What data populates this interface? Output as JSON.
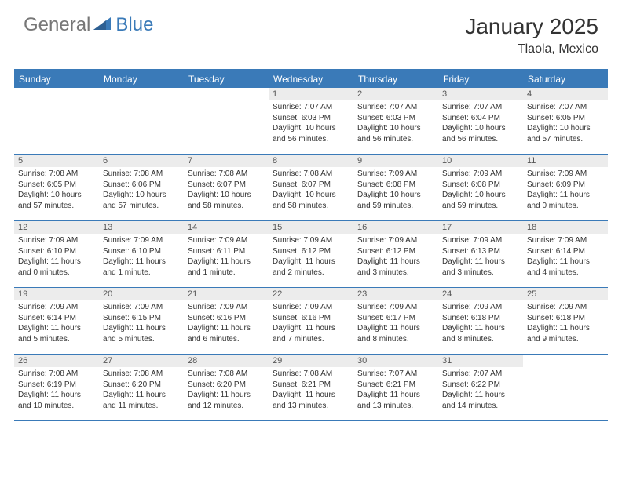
{
  "logo": {
    "text1": "General",
    "text2": "Blue"
  },
  "title": "January 2025",
  "location": "Tlaola, Mexico",
  "colors": {
    "header_bg": "#3a7ab8",
    "daynum_bg": "#ececec",
    "border": "#3a7ab8",
    "logo_gray": "#777777",
    "logo_blue": "#3a7ab8"
  },
  "day_names": [
    "Sunday",
    "Monday",
    "Tuesday",
    "Wednesday",
    "Thursday",
    "Friday",
    "Saturday"
  ],
  "weeks": [
    [
      {
        "empty": true
      },
      {
        "empty": true
      },
      {
        "empty": true
      },
      {
        "day": "1",
        "sunrise": "7:07 AM",
        "sunset": "6:03 PM",
        "daylight": "10 hours and 56 minutes."
      },
      {
        "day": "2",
        "sunrise": "7:07 AM",
        "sunset": "6:03 PM",
        "daylight": "10 hours and 56 minutes."
      },
      {
        "day": "3",
        "sunrise": "7:07 AM",
        "sunset": "6:04 PM",
        "daylight": "10 hours and 56 minutes."
      },
      {
        "day": "4",
        "sunrise": "7:07 AM",
        "sunset": "6:05 PM",
        "daylight": "10 hours and 57 minutes."
      }
    ],
    [
      {
        "day": "5",
        "sunrise": "7:08 AM",
        "sunset": "6:05 PM",
        "daylight": "10 hours and 57 minutes."
      },
      {
        "day": "6",
        "sunrise": "7:08 AM",
        "sunset": "6:06 PM",
        "daylight": "10 hours and 57 minutes."
      },
      {
        "day": "7",
        "sunrise": "7:08 AM",
        "sunset": "6:07 PM",
        "daylight": "10 hours and 58 minutes."
      },
      {
        "day": "8",
        "sunrise": "7:08 AM",
        "sunset": "6:07 PM",
        "daylight": "10 hours and 58 minutes."
      },
      {
        "day": "9",
        "sunrise": "7:09 AM",
        "sunset": "6:08 PM",
        "daylight": "10 hours and 59 minutes."
      },
      {
        "day": "10",
        "sunrise": "7:09 AM",
        "sunset": "6:08 PM",
        "daylight": "10 hours and 59 minutes."
      },
      {
        "day": "11",
        "sunrise": "7:09 AM",
        "sunset": "6:09 PM",
        "daylight": "11 hours and 0 minutes."
      }
    ],
    [
      {
        "day": "12",
        "sunrise": "7:09 AM",
        "sunset": "6:10 PM",
        "daylight": "11 hours and 0 minutes."
      },
      {
        "day": "13",
        "sunrise": "7:09 AM",
        "sunset": "6:10 PM",
        "daylight": "11 hours and 1 minute."
      },
      {
        "day": "14",
        "sunrise": "7:09 AM",
        "sunset": "6:11 PM",
        "daylight": "11 hours and 1 minute."
      },
      {
        "day": "15",
        "sunrise": "7:09 AM",
        "sunset": "6:12 PM",
        "daylight": "11 hours and 2 minutes."
      },
      {
        "day": "16",
        "sunrise": "7:09 AM",
        "sunset": "6:12 PM",
        "daylight": "11 hours and 3 minutes."
      },
      {
        "day": "17",
        "sunrise": "7:09 AM",
        "sunset": "6:13 PM",
        "daylight": "11 hours and 3 minutes."
      },
      {
        "day": "18",
        "sunrise": "7:09 AM",
        "sunset": "6:14 PM",
        "daylight": "11 hours and 4 minutes."
      }
    ],
    [
      {
        "day": "19",
        "sunrise": "7:09 AM",
        "sunset": "6:14 PM",
        "daylight": "11 hours and 5 minutes."
      },
      {
        "day": "20",
        "sunrise": "7:09 AM",
        "sunset": "6:15 PM",
        "daylight": "11 hours and 5 minutes."
      },
      {
        "day": "21",
        "sunrise": "7:09 AM",
        "sunset": "6:16 PM",
        "daylight": "11 hours and 6 minutes."
      },
      {
        "day": "22",
        "sunrise": "7:09 AM",
        "sunset": "6:16 PM",
        "daylight": "11 hours and 7 minutes."
      },
      {
        "day": "23",
        "sunrise": "7:09 AM",
        "sunset": "6:17 PM",
        "daylight": "11 hours and 8 minutes."
      },
      {
        "day": "24",
        "sunrise": "7:09 AM",
        "sunset": "6:18 PM",
        "daylight": "11 hours and 8 minutes."
      },
      {
        "day": "25",
        "sunrise": "7:09 AM",
        "sunset": "6:18 PM",
        "daylight": "11 hours and 9 minutes."
      }
    ],
    [
      {
        "day": "26",
        "sunrise": "7:08 AM",
        "sunset": "6:19 PM",
        "daylight": "11 hours and 10 minutes."
      },
      {
        "day": "27",
        "sunrise": "7:08 AM",
        "sunset": "6:20 PM",
        "daylight": "11 hours and 11 minutes."
      },
      {
        "day": "28",
        "sunrise": "7:08 AM",
        "sunset": "6:20 PM",
        "daylight": "11 hours and 12 minutes."
      },
      {
        "day": "29",
        "sunrise": "7:08 AM",
        "sunset": "6:21 PM",
        "daylight": "11 hours and 13 minutes."
      },
      {
        "day": "30",
        "sunrise": "7:07 AM",
        "sunset": "6:21 PM",
        "daylight": "11 hours and 13 minutes."
      },
      {
        "day": "31",
        "sunrise": "7:07 AM",
        "sunset": "6:22 PM",
        "daylight": "11 hours and 14 minutes."
      },
      {
        "empty": true
      }
    ]
  ],
  "labels": {
    "sunrise": "Sunrise:",
    "sunset": "Sunset:",
    "daylight": "Daylight:"
  }
}
